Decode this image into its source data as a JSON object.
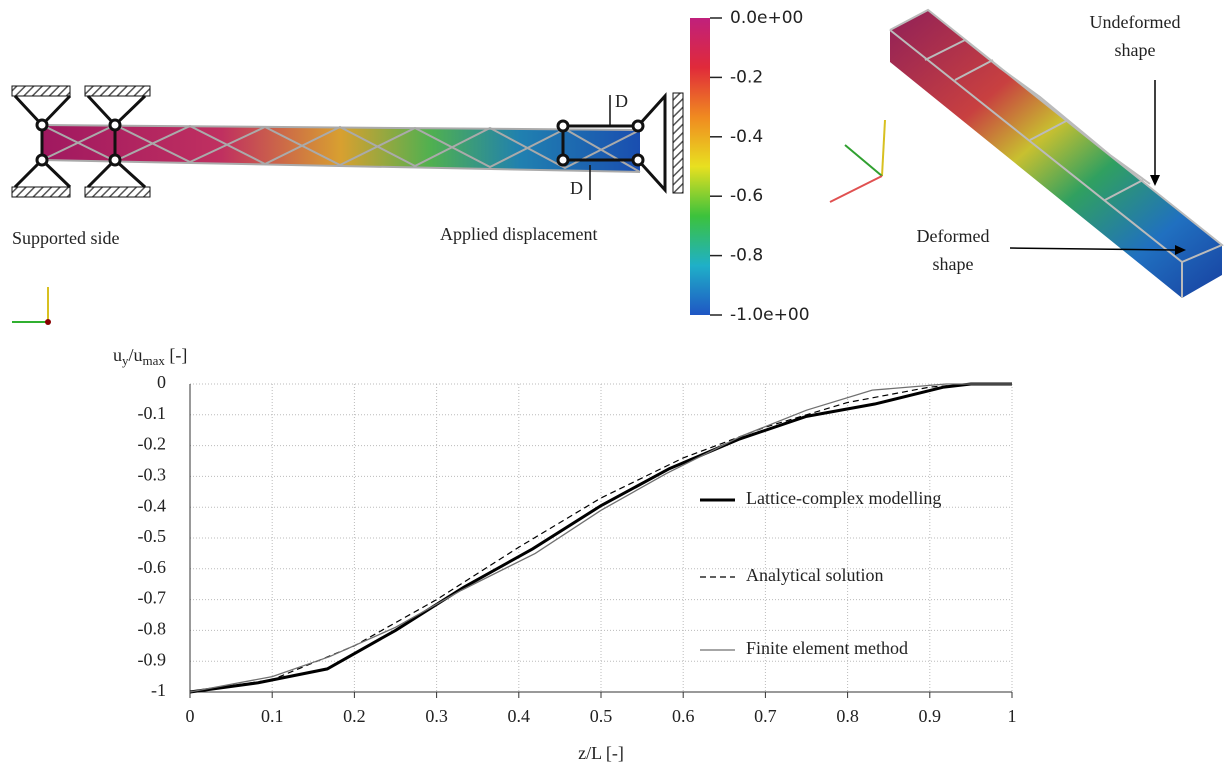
{
  "diagram": {
    "left_label": "Supported side",
    "right_label": "Applied displacement",
    "d_labels": [
      "D",
      "D"
    ],
    "undeformed_label": [
      "Undeformed",
      "shape"
    ],
    "deformed_label": [
      "Deformed",
      "shape"
    ],
    "colorbar": {
      "lim": [
        -1,
        0
      ],
      "colors": [
        "#1f56c4",
        "#1fb0c8",
        "#3cc23c",
        "#e8e020",
        "#f08a20",
        "#e02a3a",
        "#c0207c"
      ],
      "ticks": [
        {
          "value": 0,
          "label": "0.0e+00"
        },
        -0.2,
        -0.4,
        -0.6,
        -0.8,
        {
          "value": -1,
          "label": "-1.0e+00"
        }
      ]
    }
  },
  "chart_data": {
    "type": "line",
    "y_label": [
      "u",
      "y",
      "/u",
      "max",
      " [-]"
    ],
    "x_label": "z/L [-]",
    "xlim": [
      0,
      1
    ],
    "ylim": [
      -1,
      0
    ],
    "xticks": [
      0,
      0.1,
      0.2,
      0.3,
      0.4,
      0.5,
      0.6,
      0.7,
      0.8,
      0.9,
      1
    ],
    "yticks": [
      0,
      -0.1,
      -0.2,
      -0.3,
      -0.4,
      -0.5,
      -0.6,
      -0.7,
      -0.8,
      -0.9,
      -1
    ],
    "grid": true,
    "legend": "right",
    "series": [
      {
        "name": "Lattice-complex modelling",
        "color": "#000000",
        "style": "thick",
        "x": [
          0,
          0.083,
          0.167,
          0.25,
          0.333,
          0.417,
          0.5,
          0.583,
          0.667,
          0.75,
          0.833,
          0.917,
          0.95,
          1
        ],
        "values": [
          -1,
          -0.97,
          -0.925,
          -0.8,
          -0.66,
          -0.535,
          -0.395,
          -0.275,
          -0.18,
          -0.105,
          -0.065,
          -0.01,
          0,
          0
        ]
      },
      {
        "name": "Analytical solution",
        "color": "#000000",
        "style": "dashed",
        "x": [
          0,
          0.1,
          0.2,
          0.3,
          0.4,
          0.5,
          0.6,
          0.7,
          0.8,
          0.9,
          0.95,
          1
        ],
        "values": [
          -1,
          -0.96,
          -0.85,
          -0.7,
          -0.53,
          -0.37,
          -0.24,
          -0.14,
          -0.06,
          -0.01,
          0,
          0
        ]
      },
      {
        "name": "Finite element method",
        "color": "#707070",
        "style": "thin",
        "x": [
          0,
          0.1,
          0.17,
          0.25,
          0.33,
          0.42,
          0.5,
          0.58,
          0.67,
          0.75,
          0.83,
          0.92,
          1
        ],
        "values": [
          -1,
          -0.95,
          -0.885,
          -0.79,
          -0.67,
          -0.55,
          -0.41,
          -0.29,
          -0.17,
          -0.085,
          -0.02,
          0,
          0
        ]
      }
    ]
  }
}
